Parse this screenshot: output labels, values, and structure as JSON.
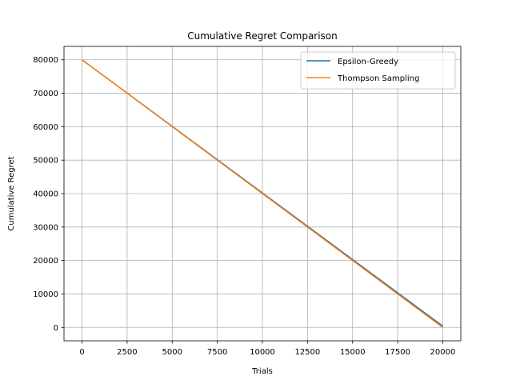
{
  "chart_data": {
    "type": "line",
    "title": "Cumulative Regret Comparison",
    "xlabel": "Trials",
    "ylabel": "Cumulative Regret",
    "xlim": [
      -1000,
      21000
    ],
    "ylim": [
      -4000,
      84000
    ],
    "xticks": [
      0,
      2500,
      5000,
      7500,
      10000,
      12500,
      15000,
      17500,
      20000
    ],
    "yticks": [
      0,
      10000,
      20000,
      30000,
      40000,
      50000,
      60000,
      70000,
      80000
    ],
    "grid": true,
    "legend_position": "top-right",
    "series": [
      {
        "name": "Epsilon-Greedy",
        "color": "#1f77b4",
        "x": [
          0,
          20000
        ],
        "y": [
          80000,
          400
        ]
      },
      {
        "name": "Thompson Sampling",
        "color": "#ff7f0e",
        "x": [
          0,
          20000
        ],
        "y": [
          80000,
          0
        ]
      }
    ]
  }
}
